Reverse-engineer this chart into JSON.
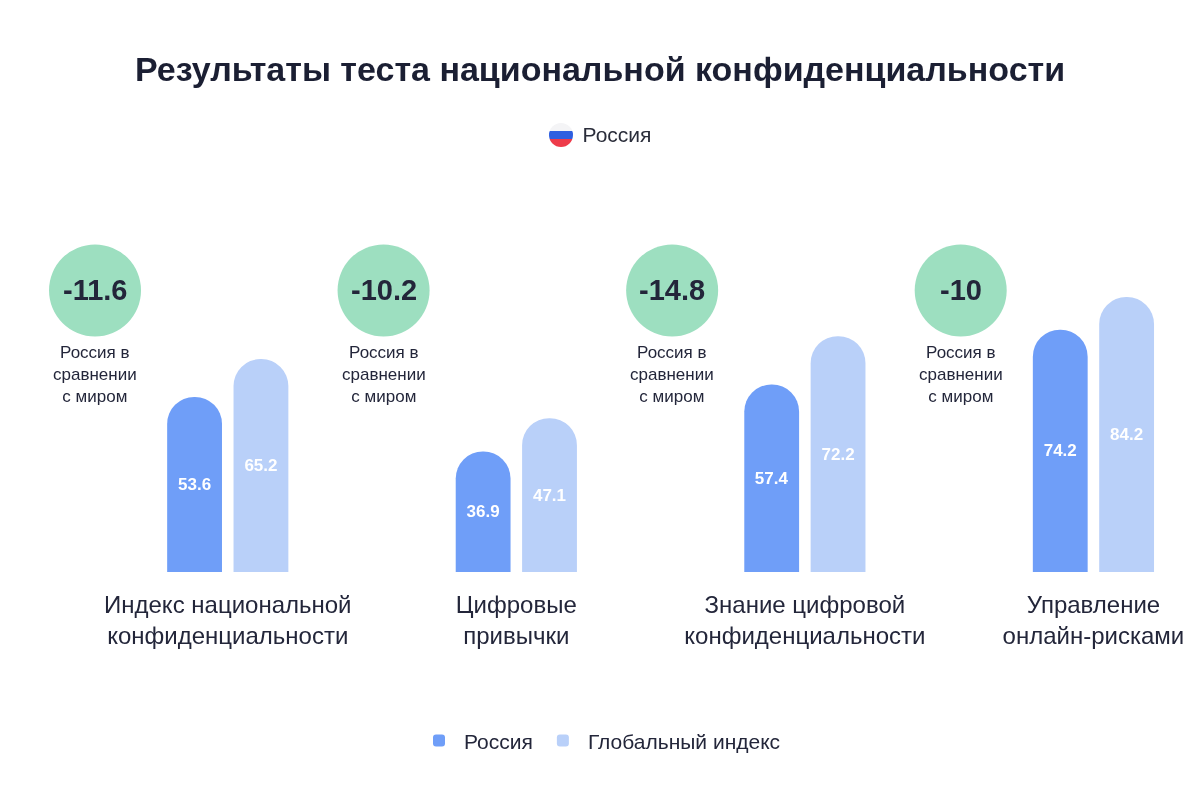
{
  "chart_data": {
    "type": "bar",
    "title": "Результаты теста национальной конфиденциальности",
    "subtitle": "Россия",
    "categories": [
      "Индекс национальной конфиденциальности",
      "Цифровые привычки",
      "Знание цифровой конфиденциальности",
      "Управление онлайн-рисками"
    ],
    "series": [
      {
        "name": "Россия",
        "color": "#6f9ef8",
        "values": [
          53.6,
          36.9,
          57.4,
          74.2
        ]
      },
      {
        "name": "Глобальный индекс",
        "color": "#b9d0f9",
        "values": [
          65.2,
          47.1,
          72.2,
          84.2
        ]
      }
    ],
    "data_labels": true,
    "legend": "bottom",
    "annotations": [
      "-11.6",
      "Россия в сравнении с миром",
      "-10.2",
      "Россия в сравнении с миром",
      "-14.8",
      "Россия в сравнении с миром",
      "-10",
      "Россия в сравнении с миром"
    ]
  }
}
